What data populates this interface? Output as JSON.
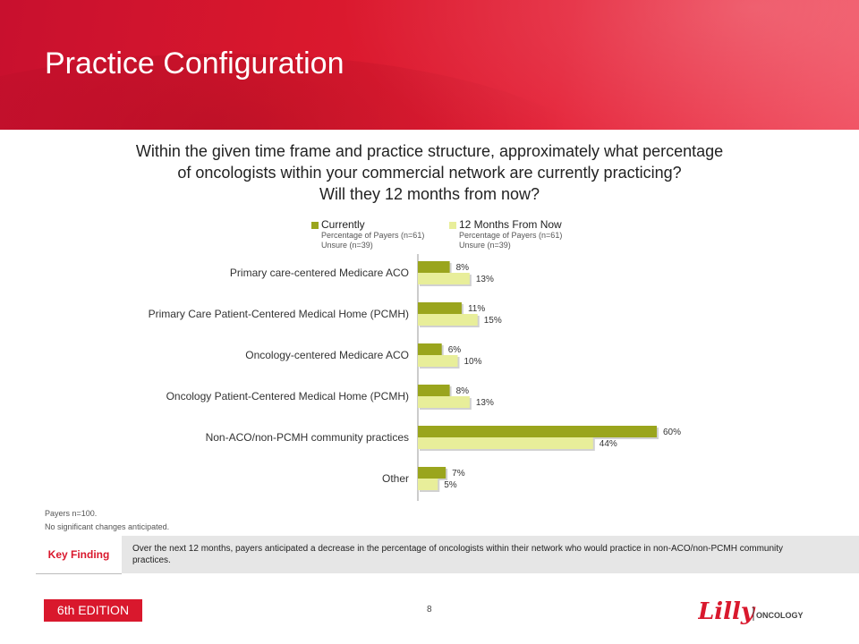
{
  "header": {
    "title": "Practice Configuration"
  },
  "question": {
    "lines": [
      "Within the given time frame and practice structure, approximately what percentage",
      "of oncologists within your commercial network are currently practicing?",
      "Will they 12 months from now?"
    ]
  },
  "legend": [
    {
      "name": "Currently",
      "color": "#9aa51d",
      "sub1": "Percentage of Payers (n=61)",
      "sub2": "Unsure (n=39)"
    },
    {
      "name": "12 Months From Now",
      "color": "#e8ee9a",
      "sub1": "Percentage of Payers (n=61)",
      "sub2": "Unsure (n=39)"
    }
  ],
  "chart_data": {
    "type": "bar",
    "orientation": "horizontal",
    "categories": [
      "Primary care-centered Medicare ACO",
      "Primary Care Patient-Centered Medical Home (PCMH)",
      "Oncology-centered Medicare ACO",
      "Oncology Patient-Centered Medical Home (PCMH)",
      "Non-ACO/non-PCMH community practices",
      "Other"
    ],
    "series": [
      {
        "name": "Currently",
        "values": [
          8,
          11,
          6,
          8,
          60,
          7
        ],
        "labels": [
          "8%",
          "11%",
          "6%",
          "8%",
          "60%",
          "7%"
        ],
        "color": "#9aa51d"
      },
      {
        "name": "12 Months From Now",
        "values": [
          13,
          15,
          10,
          13,
          44,
          5
        ],
        "labels": [
          "13%",
          "15%",
          "10%",
          "13%",
          "44%",
          "5%"
        ],
        "color": "#e8ee9a"
      }
    ],
    "xlim": [
      0,
      100
    ],
    "grid": false,
    "legend_position": "top"
  },
  "footnotes": [
    "Payers n=100.",
    "No significant changes anticipated."
  ],
  "key_finding": {
    "label": "Key Finding",
    "text": "Over the next 12 months, payers anticipated a decrease in the percentage of oncologists within their network who would practice in non-ACO/non-PCMH community practices."
  },
  "footer": {
    "edition": "6th EDITION",
    "page": "8",
    "logo_brand": "Lilly",
    "logo_sub": "ONCOLOGY"
  }
}
